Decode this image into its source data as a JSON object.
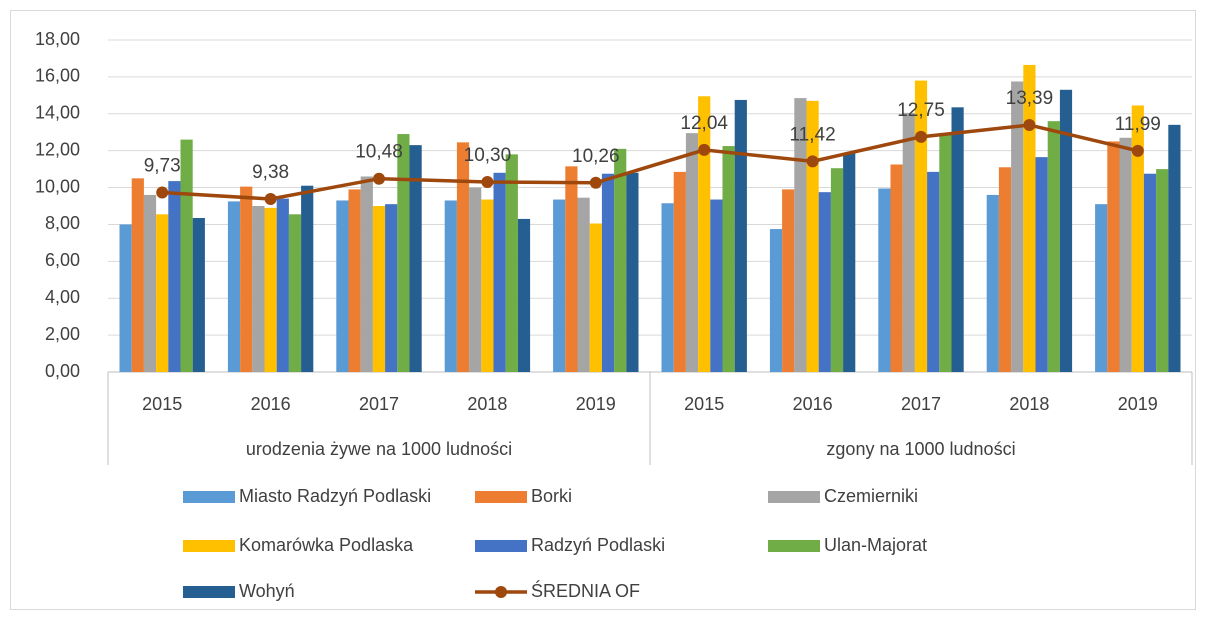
{
  "chart_data": {
    "type": "bar",
    "categories": [
      "2015",
      "2016",
      "2017",
      "2018",
      "2019",
      "2015",
      "2016",
      "2017",
      "2018",
      "2019"
    ],
    "category_groups": [
      "urodzenia żywe na 1000 ludności",
      "zgony na 1000 ludności"
    ],
    "ylim": [
      0,
      18
    ],
    "yticks": [
      {
        "value": 0,
        "label": "0,00"
      },
      {
        "value": 2,
        "label": "2,00"
      },
      {
        "value": 4,
        "label": "4,00"
      },
      {
        "value": 6,
        "label": "6,00"
      },
      {
        "value": 8,
        "label": "8,00"
      },
      {
        "value": 10,
        "label": "10,00"
      },
      {
        "value": 12,
        "label": "12,00"
      },
      {
        "value": 14,
        "label": "14,00"
      },
      {
        "value": 16,
        "label": "16,00"
      },
      {
        "value": 18,
        "label": "18,00"
      }
    ],
    "grid": true,
    "legend": "bottom",
    "series": [
      {
        "name": "Miasto Radzyń Podlaski",
        "color": "#5b9bd5",
        "values": [
          8.0,
          9.25,
          9.3,
          9.3,
          9.35,
          9.15,
          7.75,
          9.95,
          9.6,
          9.1
        ]
      },
      {
        "name": "Borki",
        "color": "#ed7d31",
        "values": [
          10.5,
          10.05,
          9.9,
          12.45,
          11.15,
          10.85,
          9.9,
          11.25,
          11.1,
          12.5
        ]
      },
      {
        "name": "Czemierniki",
        "color": "#a5a5a5",
        "values": [
          9.6,
          9.0,
          10.6,
          10.0,
          9.45,
          12.95,
          14.85,
          14.05,
          15.75,
          12.7
        ]
      },
      {
        "name": "Komarówka Podlaska",
        "color": "#ffc000",
        "values": [
          8.55,
          8.9,
          9.0,
          9.35,
          8.05,
          14.95,
          14.7,
          15.8,
          16.65,
          14.45
        ]
      },
      {
        "name": "Radzyń Podlaski",
        "color": "#4472c4",
        "values": [
          10.35,
          9.4,
          9.1,
          10.8,
          10.75,
          9.35,
          9.75,
          10.85,
          11.65,
          10.75
        ]
      },
      {
        "name": "Ulan-Majorat",
        "color": "#70ad47",
        "values": [
          12.6,
          8.55,
          12.9,
          11.8,
          12.1,
          12.25,
          11.05,
          12.9,
          13.6,
          11.0
        ]
      },
      {
        "name": "Wohyń",
        "color": "#255e91",
        "values": [
          8.35,
          10.1,
          12.3,
          8.3,
          10.8,
          14.75,
          11.85,
          14.35,
          15.3,
          13.4
        ]
      },
      {
        "name": "ŚREDNIA OF",
        "color": "#9e480e",
        "type": "line",
        "values": [
          9.73,
          9.38,
          10.48,
          10.3,
          10.26,
          12.04,
          11.42,
          12.75,
          13.39,
          11.99
        ],
        "value_labels": [
          "9,73",
          "9,38",
          "10,48",
          "10,30",
          "10,26",
          "12,04",
          "11,42",
          "12,75",
          "13,39",
          "11,99"
        ]
      }
    ]
  }
}
